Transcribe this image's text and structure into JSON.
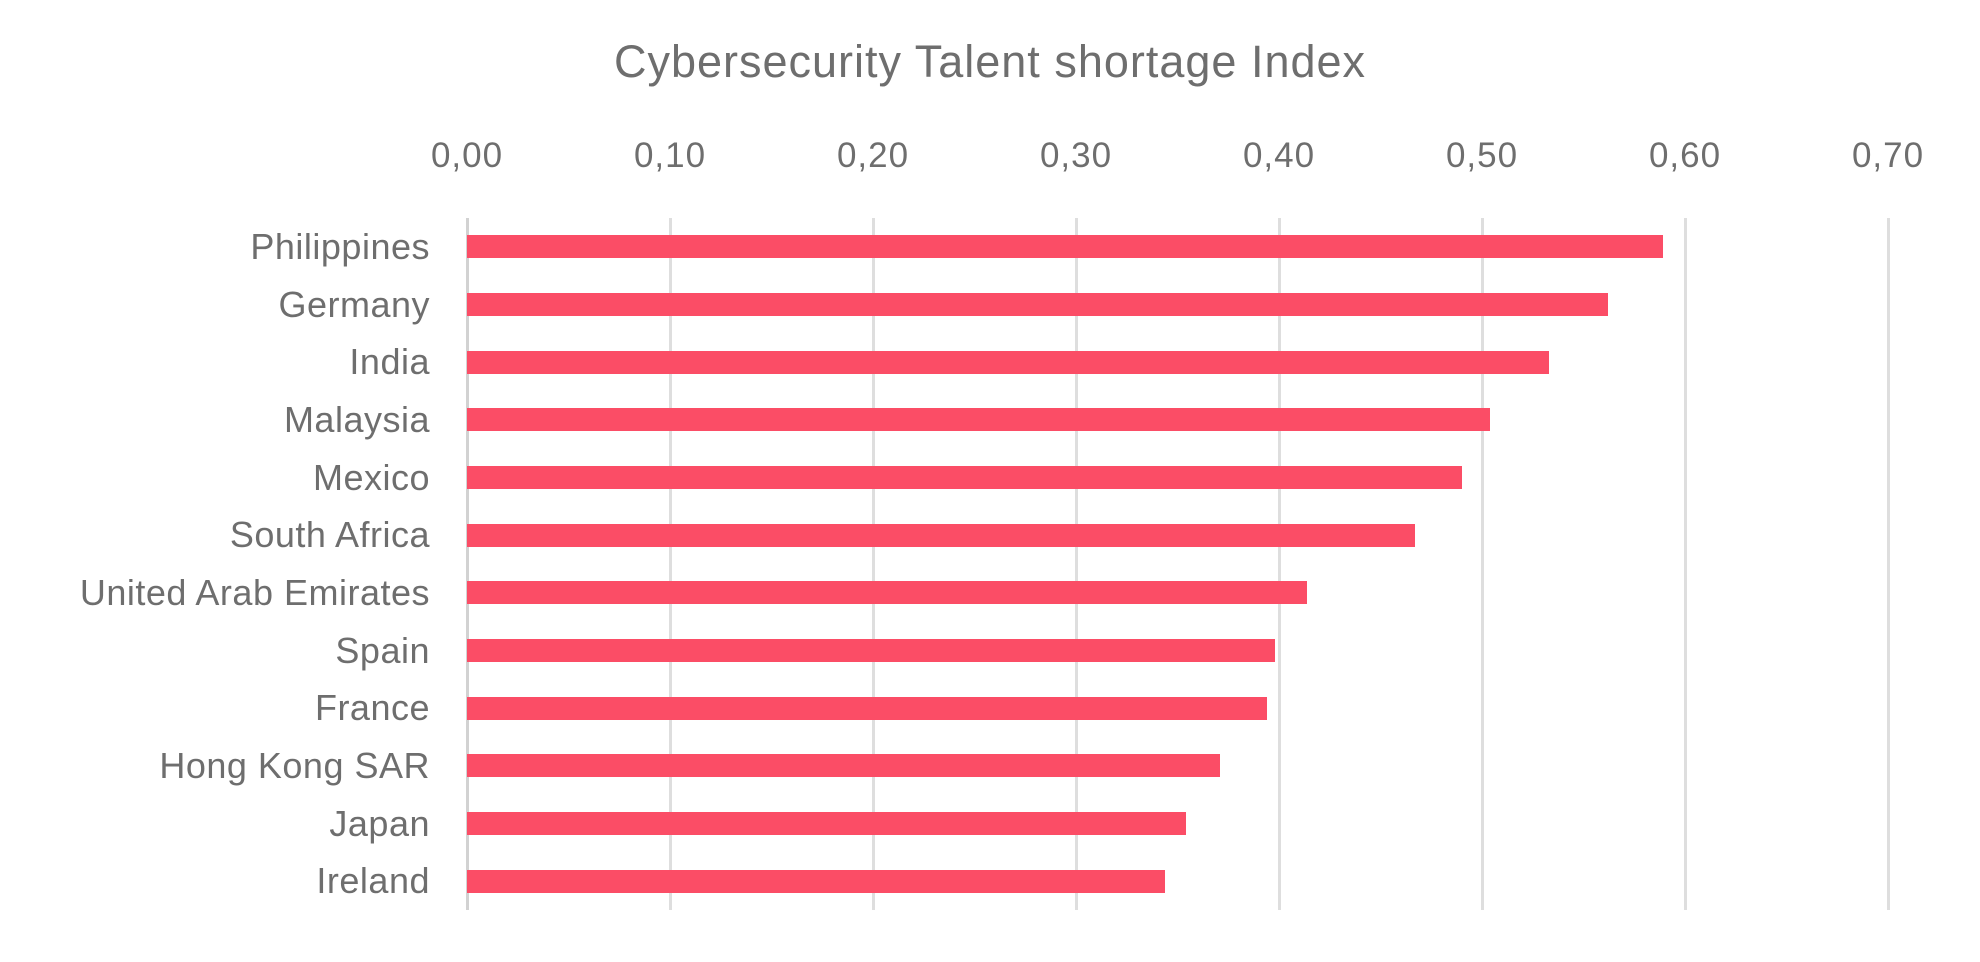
{
  "chart_data": {
    "type": "bar",
    "orientation": "horizontal",
    "title": "Cybersecurity Talent shortage Index",
    "categories": [
      "Philippines",
      "Germany",
      "India",
      "Malaysia",
      "Mexico",
      "South Africa",
      "United Arab Emirates",
      "Spain",
      "France",
      "Hong Kong SAR",
      "Japan",
      "Ireland"
    ],
    "values": [
      0.589,
      0.562,
      0.533,
      0.504,
      0.49,
      0.467,
      0.414,
      0.398,
      0.394,
      0.371,
      0.354,
      0.344
    ],
    "xlabel": "",
    "ylabel": "",
    "xlim": [
      0,
      0.7
    ],
    "x_ticks": [
      0.0,
      0.1,
      0.2,
      0.3,
      0.4,
      0.5,
      0.6,
      0.7
    ],
    "x_tick_labels": [
      "0,00",
      "0,10",
      "0,20",
      "0,30",
      "0,40",
      "0,50",
      "0,60",
      "0,70"
    ],
    "tick_position": "top",
    "grid": true,
    "legend": false,
    "colors": {
      "bar": "#fb4d66",
      "text": "#6e6e6e",
      "gridline": "#dedede",
      "axis_line": "#d2d2d2",
      "background": "#ffffff"
    }
  }
}
